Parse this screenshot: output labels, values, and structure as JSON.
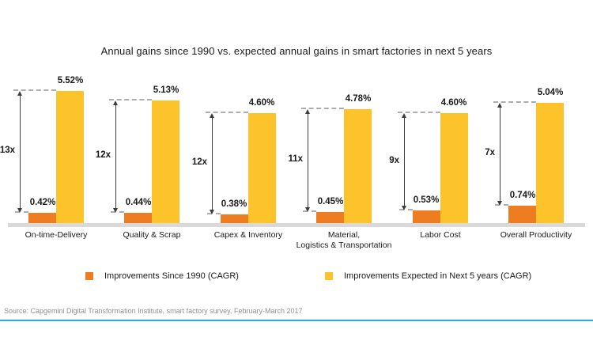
{
  "source": "Source: Capgemini Digital Transformation Institute, smart factory survey, February-March 2017",
  "colors": {
    "since_orange": "#EE7C20",
    "expected_yellow": "#FCC42A",
    "baseline_gray": "#D9D9D9",
    "divider_blue": "#29A9E0",
    "dash_gray": "#ADADAD",
    "arrow_dark": "#3D3D3D",
    "text_dark": "#1A1A1A",
    "source_gray": "#8F8F8F"
  },
  "chart_data": {
    "type": "bar",
    "title": "Annual gains since 1990 vs. expected annual gains in smart factories in next 5 years",
    "categories": [
      "On-time-Delivery",
      "Quality & Scrap",
      "Capex & Inventory",
      "Material,\nLogistics & Transportation",
      "Labor Cost",
      "Overall Productivity"
    ],
    "series": [
      {
        "name": "Improvements Since 1990 (CAGR)",
        "color": "#EE7C20",
        "values": [
          0.42,
          0.44,
          0.38,
          0.45,
          0.53,
          0.74
        ],
        "labels": [
          "0.42%",
          "0.44%",
          "0.38%",
          "0.45%",
          "0.53%",
          "0.74%"
        ]
      },
      {
        "name": "Improvements Expected in Next 5 years (CAGR)",
        "color": "#FCC42A",
        "values": [
          5.52,
          5.13,
          4.6,
          4.78,
          4.6,
          5.04
        ],
        "labels": [
          "5.52%",
          "5.13%",
          "4.60%",
          "4.78%",
          "4.60%",
          "5.04%"
        ]
      }
    ],
    "multipliers": [
      "13x",
      "12x",
      "12x",
      "11x",
      "9x",
      "7x"
    ],
    "ylim": [
      0,
      5.8
    ],
    "unit": "%",
    "grid": false,
    "legend_position": "bottom"
  }
}
